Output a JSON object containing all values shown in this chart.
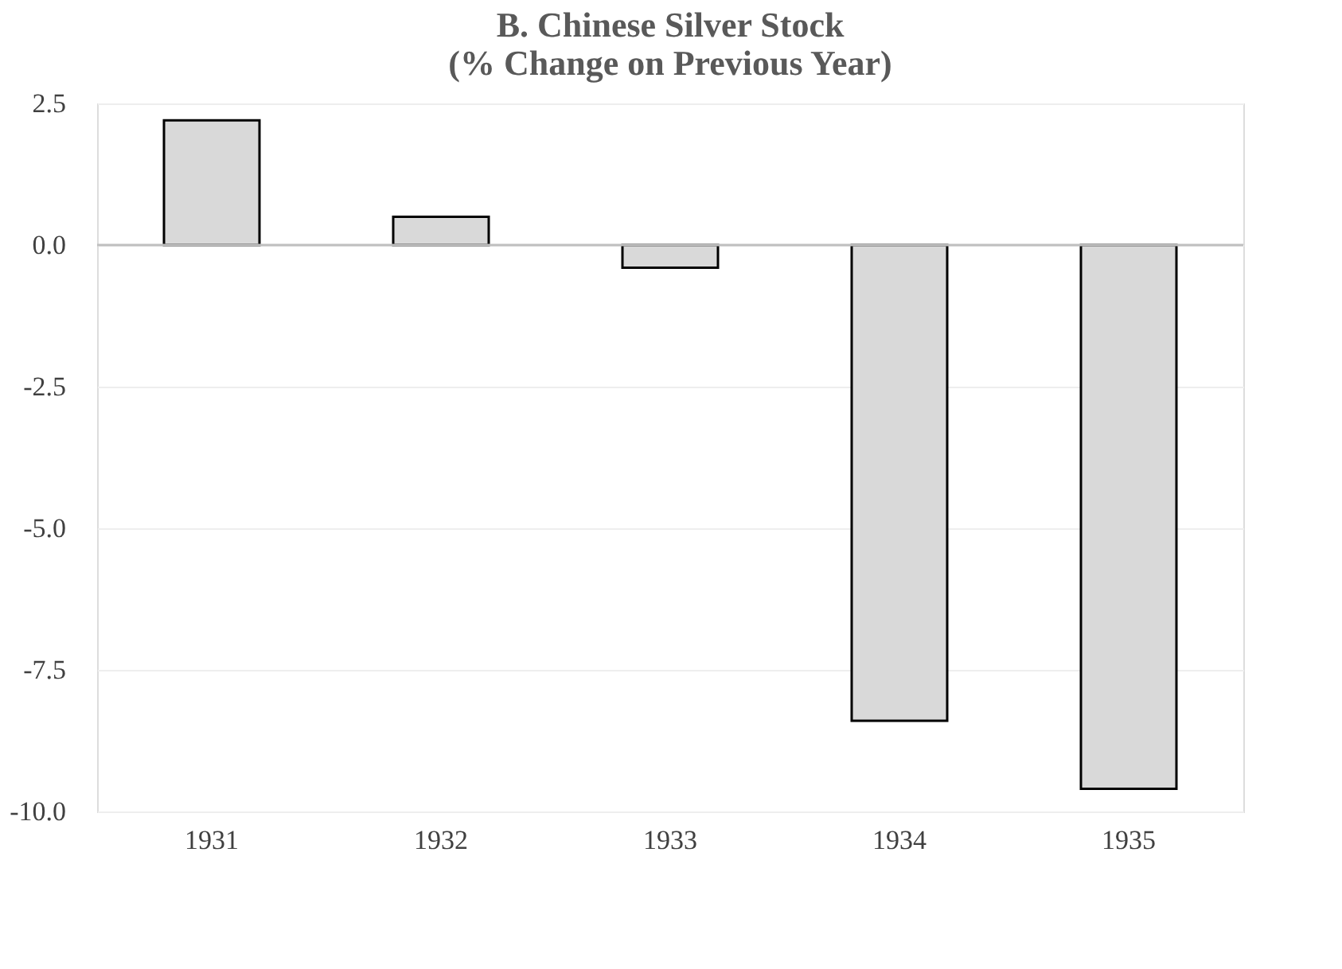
{
  "chart_data": {
    "type": "bar",
    "title": [
      "B. Chinese Silver Stock",
      "(% Change on Previous Year)"
    ],
    "categories": [
      "1931",
      "1932",
      "1933",
      "1934",
      "1935"
    ],
    "values": [
      2.2,
      0.5,
      -0.4,
      -8.4,
      -9.6
    ],
    "color": "#d9d9d9",
    "ylim": [
      -10,
      2.5
    ],
    "yticks": [
      {
        "value": 2.5,
        "label": "2.5"
      },
      {
        "value": 0,
        "label": "0.0"
      },
      {
        "value": -2.5,
        "label": "-2.5"
      },
      {
        "value": -5,
        "label": "-5.0"
      },
      {
        "value": -7.5,
        "label": "-7.5"
      },
      {
        "value": -10,
        "label": "-10.0"
      }
    ],
    "grid": "y"
  }
}
